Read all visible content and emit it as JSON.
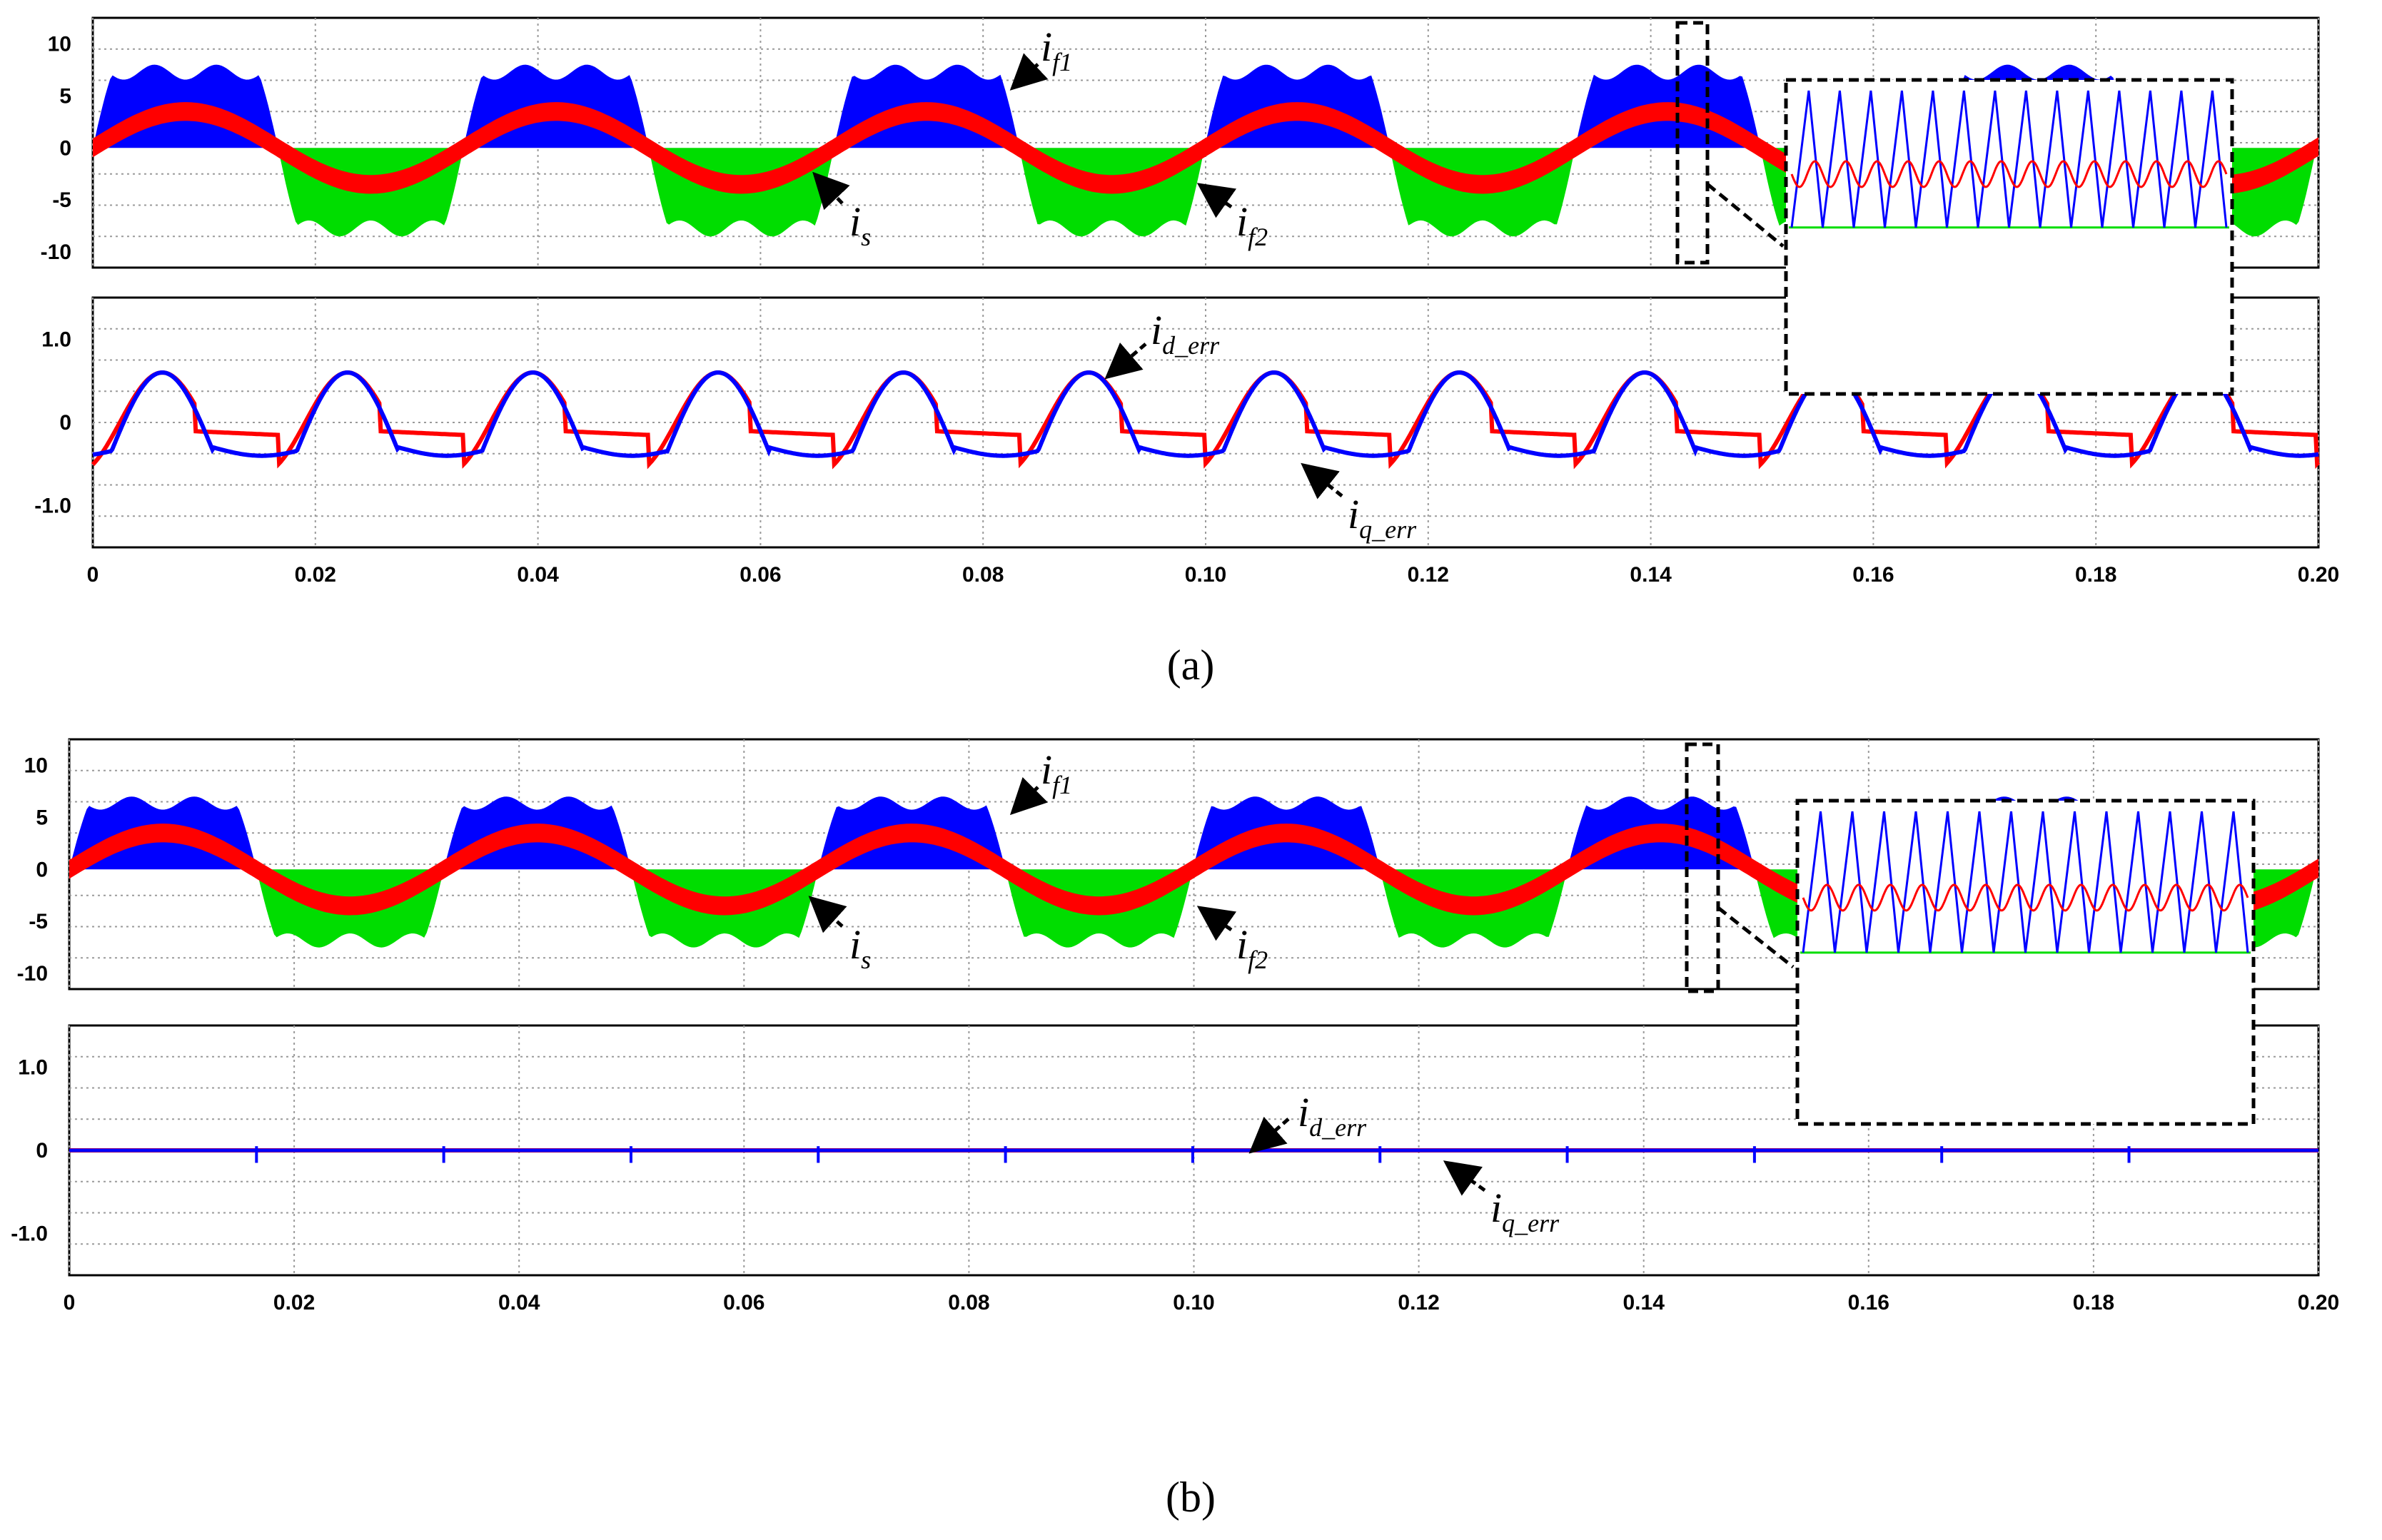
{
  "chart_data": [
    {
      "panel": "a",
      "caption": "(a)",
      "type": "line",
      "x_ticks": [
        "0",
        "0.02",
        "0.04",
        "0.06",
        "0.08",
        "0.10",
        "0.12",
        "0.14",
        "0.16",
        "0.18",
        "0.20"
      ],
      "xlim": [
        0,
        0.2
      ],
      "grid": true,
      "top_plot": {
        "ylim": [
          -11.5,
          12.5
        ],
        "y_ticks": [
          "10",
          "5",
          "0",
          "-5",
          "-10"
        ],
        "y_tick_values": [
          10,
          5,
          0,
          -5,
          -10
        ],
        "fundamental_period": 0.0333,
        "series": [
          {
            "name": "i_f1",
            "color": "#0000ff",
            "peak": 8.0,
            "description_values": {
              "max": 8,
              "min": 0
            }
          },
          {
            "name": "i_s",
            "color": "#ff0000",
            "peak": 3.5,
            "description_values": {
              "max": 3.5,
              "min": -3.5
            }
          },
          {
            "name": "i_f2",
            "color": "#00dd00",
            "peak": -8.5,
            "description_values": {
              "max": 0,
              "min": -8.5
            }
          }
        ],
        "labels": [
          {
            "base": "i",
            "sub": "f1"
          },
          {
            "base": "i",
            "sub": "s"
          },
          {
            "base": "i",
            "sub": "f2"
          }
        ]
      },
      "bottom_plot": {
        "ylim": [
          -1.5,
          1.5
        ],
        "y_ticks": [
          "1.0",
          "0",
          "-1.0"
        ],
        "y_tick_values": [
          1.0,
          0,
          -1.0
        ],
        "series": [
          {
            "name": "i_d_err",
            "color": "#ff0000",
            "amplitude": 0.6
          },
          {
            "name": "i_q_err",
            "color": "#0000ff",
            "amplitude": 0.6
          }
        ],
        "labels": [
          {
            "base": "i",
            "sub": "d_err"
          },
          {
            "base": "i",
            "sub": "q_err"
          }
        ]
      },
      "zoom_window": {
        "x_range": [
          0.1425,
          0.145
        ]
      }
    },
    {
      "panel": "b",
      "caption": "(b)",
      "type": "line",
      "x_ticks": [
        "0",
        "0.02",
        "0.04",
        "0.06",
        "0.08",
        "0.10",
        "0.12",
        "0.14",
        "0.16",
        "0.18",
        "0.20"
      ],
      "xlim": [
        0,
        0.2
      ],
      "grid": true,
      "top_plot": {
        "ylim": [
          -11.5,
          12.5
        ],
        "y_ticks": [
          "10",
          "5",
          "0",
          "-5",
          "-10"
        ],
        "y_tick_values": [
          10,
          5,
          0,
          -5,
          -10
        ],
        "fundamental_period": 0.0333,
        "series": [
          {
            "name": "i_f1",
            "color": "#0000ff",
            "peak": 7.0
          },
          {
            "name": "i_s",
            "color": "#ff0000",
            "peak": 3.5
          },
          {
            "name": "i_f2",
            "color": "#00dd00",
            "peak": -7.5
          }
        ],
        "labels": [
          {
            "base": "i",
            "sub": "f1"
          },
          {
            "base": "i",
            "sub": "s"
          },
          {
            "base": "i",
            "sub": "f2"
          }
        ]
      },
      "bottom_plot": {
        "ylim": [
          -1.5,
          1.5
        ],
        "y_ticks": [
          "1.0",
          "0",
          "-1.0"
        ],
        "y_tick_values": [
          1.0,
          0,
          -1.0
        ],
        "series": [
          {
            "name": "i_d_err",
            "color": "#ff0000",
            "amplitude": 0.0
          },
          {
            "name": "i_q_err",
            "color": "#0000ff",
            "amplitude": 0.0
          }
        ],
        "labels": [
          {
            "base": "i",
            "sub": "d_err"
          },
          {
            "base": "i",
            "sub": "q_err"
          }
        ]
      },
      "zoom_window": {
        "x_range": [
          0.1425,
          0.145
        ]
      }
    }
  ]
}
